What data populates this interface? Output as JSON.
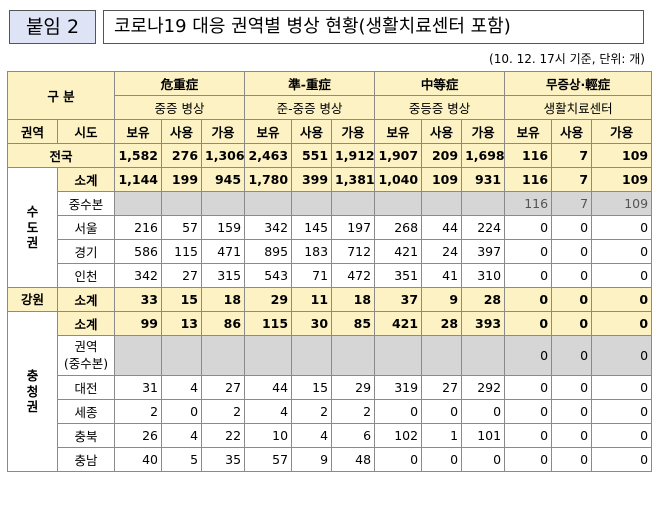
{
  "header": {
    "tag": "붙임 2",
    "title": "코로나19 대응 권역별 병상 현황(생활치료센터 포함)",
    "note": "(10. 12. 17시 기준, 단위: 개)"
  },
  "table": {
    "gubun": "구 분",
    "groups": [
      {
        "name": "危重症",
        "sub": "중증 병상"
      },
      {
        "name": "準-重症",
        "sub": "준-중증 병상"
      },
      {
        "name": "中等症",
        "sub": "중등증 병상"
      },
      {
        "name": "무증상·輕症",
        "sub": "생활치료센터"
      }
    ],
    "col_region": "권역",
    "col_sido": "시도",
    "cols": [
      "보유",
      "사용",
      "가용"
    ],
    "national": {
      "label": "전국",
      "values": [
        "1,582",
        "276",
        "1,306",
        "2,463",
        "551",
        "1,912",
        "1,907",
        "209",
        "1,698",
        "116",
        "7",
        "109"
      ]
    },
    "regions": [
      {
        "name": "수도권",
        "rows": [
          {
            "label": "소계",
            "values": [
              "1,144",
              "199",
              "945",
              "1,780",
              "399",
              "1,381",
              "1,040",
              "109",
              "931",
              "116",
              "7",
              "109"
            ]
          },
          {
            "label": "중수본",
            "values": [
              "",
              "",
              "",
              "",
              "",
              "",
              "",
              "",
              "",
              "116",
              "7",
              "109"
            ]
          },
          {
            "label": "서울",
            "values": [
              "216",
              "57",
              "159",
              "342",
              "145",
              "197",
              "268",
              "44",
              "224",
              "0",
              "0",
              "0"
            ]
          },
          {
            "label": "경기",
            "values": [
              "586",
              "115",
              "471",
              "895",
              "183",
              "712",
              "421",
              "24",
              "397",
              "0",
              "0",
              "0"
            ]
          },
          {
            "label": "인천",
            "values": [
              "342",
              "27",
              "315",
              "543",
              "71",
              "472",
              "351",
              "41",
              "310",
              "0",
              "0",
              "0"
            ]
          }
        ]
      },
      {
        "name": "강원",
        "rows": [
          {
            "label": "소계",
            "values": [
              "33",
              "15",
              "18",
              "29",
              "11",
              "18",
              "37",
              "9",
              "28",
              "0",
              "0",
              "0"
            ]
          }
        ]
      },
      {
        "name": "충청권",
        "rows": [
          {
            "label": "소계",
            "values": [
              "99",
              "13",
              "86",
              "115",
              "30",
              "85",
              "421",
              "28",
              "393",
              "0",
              "0",
              "0"
            ]
          },
          {
            "label": "권역\n(중수본)",
            "values": [
              "",
              "",
              "",
              "",
              "",
              "",
              "",
              "",
              "",
              "0",
              "0",
              "0"
            ]
          },
          {
            "label": "대전",
            "values": [
              "31",
              "4",
              "27",
              "44",
              "15",
              "29",
              "319",
              "27",
              "292",
              "0",
              "0",
              "0"
            ]
          },
          {
            "label": "세종",
            "values": [
              "2",
              "0",
              "2",
              "4",
              "2",
              "2",
              "0",
              "0",
              "0",
              "0",
              "0",
              "0"
            ]
          },
          {
            "label": "충북",
            "values": [
              "26",
              "4",
              "22",
              "10",
              "4",
              "6",
              "102",
              "1",
              "101",
              "0",
              "0",
              "0"
            ]
          },
          {
            "label": "충남",
            "values": [
              "40",
              "5",
              "35",
              "57",
              "9",
              "48",
              "0",
              "0",
              "0",
              "0",
              "0",
              "0"
            ]
          }
        ]
      }
    ]
  }
}
